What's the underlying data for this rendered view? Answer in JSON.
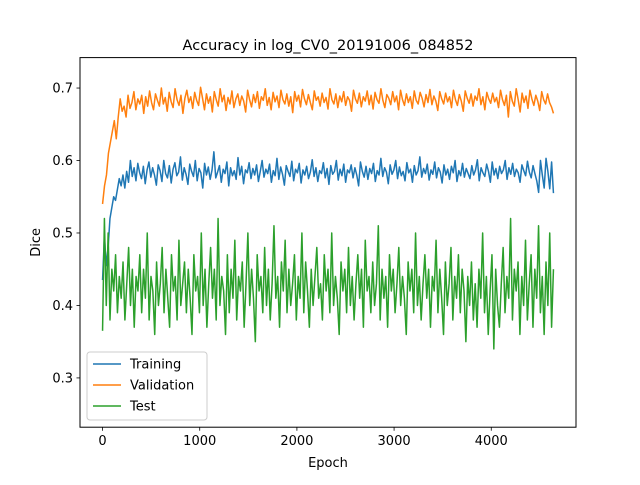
{
  "chart_data": {
    "type": "line",
    "title": "Accuracy in log_CV0_20191006_084852",
    "xlabel": "Epoch",
    "ylabel": "Dice",
    "xlim": [
      -232,
      4872
    ],
    "ylim": [
      0.232,
      0.742
    ],
    "x_ticks": [
      0,
      1000,
      2000,
      3000,
      4000
    ],
    "y_ticks": [
      0.3,
      0.4,
      0.5,
      0.6,
      0.7
    ],
    "x_tick_labels": [
      "0",
      "1000",
      "2000",
      "3000",
      "4000"
    ],
    "y_tick_labels": [
      "0.3",
      "0.4",
      "0.5",
      "0.6",
      "0.7"
    ],
    "grid": false,
    "legend_position": "lower-left",
    "x_range": [
      0,
      4640
    ],
    "sample_step": 20,
    "series": [
      {
        "name": "Training",
        "color": "#1f77b4",
        "values": [
          0.435,
          0.495,
          0.455,
          0.48,
          0.52,
          0.535,
          0.55,
          0.545,
          0.56,
          0.575,
          0.565,
          0.58,
          0.562,
          0.585,
          0.57,
          0.6,
          0.578,
          0.59,
          0.572,
          0.596,
          0.583,
          0.575,
          0.592,
          0.568,
          0.587,
          0.598,
          0.577,
          0.59,
          0.58,
          0.566,
          0.594,
          0.586,
          0.571,
          0.6,
          0.582,
          0.576,
          0.593,
          0.569,
          0.588,
          0.597,
          0.579,
          0.584,
          0.605,
          0.573,
          0.59,
          0.581,
          0.567,
          0.595,
          0.585,
          0.578,
          0.6,
          0.572,
          0.589,
          0.583,
          0.562,
          0.596,
          0.58,
          0.591,
          0.574,
          0.587,
          0.612,
          0.576,
          0.584,
          0.593,
          0.57,
          0.588,
          0.582,
          0.598,
          0.565,
          0.59,
          0.579,
          0.586,
          0.574,
          0.604,
          0.58,
          0.592,
          0.568,
          0.587,
          0.583,
          0.597,
          0.575,
          0.589,
          0.58,
          0.594,
          0.571,
          0.585,
          0.6,
          0.577,
          0.588,
          0.582,
          0.595,
          0.57,
          0.586,
          0.579,
          0.603,
          0.574,
          0.591,
          0.581,
          0.566,
          0.593,
          0.585,
          0.578,
          0.599,
          0.572,
          0.588,
          0.583,
          0.596,
          0.569,
          0.587,
          0.58,
          0.592,
          0.575,
          0.584,
          0.601,
          0.578,
          0.59,
          0.571,
          0.586,
          0.582,
          0.597,
          0.576,
          0.589,
          0.567,
          0.593,
          0.581,
          0.585,
          0.6,
          0.573,
          0.588,
          0.579,
          0.595,
          0.57,
          0.587,
          0.583,
          0.594,
          0.576,
          0.59,
          0.58,
          0.565,
          0.598,
          0.585,
          0.577,
          0.592,
          0.574,
          0.589,
          0.582,
          0.596,
          0.571,
          0.586,
          0.58,
          0.603,
          0.578,
          0.59,
          0.584,
          0.568,
          0.594,
          0.581,
          0.587,
          0.6,
          0.575,
          0.591,
          0.579,
          0.585,
          0.572,
          0.597,
          0.583,
          0.588,
          0.57,
          0.593,
          0.58,
          0.586,
          0.605,
          0.577,
          0.589,
          0.582,
          0.595,
          0.573,
          0.587,
          0.581,
          0.598,
          0.576,
          0.59,
          0.584,
          0.569,
          0.594,
          0.58,
          0.588,
          0.574,
          0.592,
          0.583,
          0.6,
          0.571,
          0.586,
          0.579,
          0.596,
          0.577,
          0.589,
          0.582,
          0.575,
          0.593,
          0.58,
          0.587,
          0.601,
          0.572,
          0.59,
          0.583,
          0.578,
          0.595,
          0.585,
          0.57,
          0.598,
          0.58,
          0.589,
          0.575,
          0.592,
          0.582,
          0.587,
          0.6,
          0.574,
          0.59,
          0.581,
          0.596,
          0.578,
          0.588,
          0.583,
          0.57,
          0.594,
          0.586,
          0.579,
          0.599,
          0.584,
          0.576,
          0.593,
          0.582,
          0.572,
          0.556,
          0.6,
          0.58,
          0.562,
          0.603,
          0.585,
          0.561,
          0.598,
          0.555
        ]
      },
      {
        "name": "Validation",
        "color": "#ff7f0e",
        "values": [
          0.54,
          0.565,
          0.58,
          0.61,
          0.625,
          0.64,
          0.655,
          0.63,
          0.66,
          0.685,
          0.668,
          0.675,
          0.66,
          0.69,
          0.672,
          0.68,
          0.695,
          0.67,
          0.685,
          0.678,
          0.69,
          0.665,
          0.688,
          0.675,
          0.696,
          0.68,
          0.67,
          0.692,
          0.683,
          0.675,
          0.7,
          0.678,
          0.687,
          0.668,
          0.694,
          0.681,
          0.673,
          0.699,
          0.684,
          0.676,
          0.69,
          0.665,
          0.686,
          0.697,
          0.68,
          0.688,
          0.672,
          0.694,
          0.683,
          0.676,
          0.701,
          0.686,
          0.67,
          0.692,
          0.679,
          0.688,
          0.667,
          0.695,
          0.684,
          0.675,
          0.699,
          0.681,
          0.69,
          0.669,
          0.687,
          0.678,
          0.696,
          0.673,
          0.685,
          0.692,
          0.676,
          0.689,
          0.682,
          0.667,
          0.697,
          0.684,
          0.674,
          0.691,
          0.68,
          0.695,
          0.672,
          0.688,
          0.683,
          0.699,
          0.676,
          0.687,
          0.67,
          0.694,
          0.681,
          0.689,
          0.673,
          0.697,
          0.684,
          0.678,
          0.692,
          0.675,
          0.688,
          0.666,
          0.695,
          0.682,
          0.69,
          0.674,
          0.698,
          0.685,
          0.677,
          0.691,
          0.68,
          0.67,
          0.696,
          0.683,
          0.688,
          0.675,
          0.693,
          0.68,
          0.687,
          0.671,
          0.699,
          0.684,
          0.678,
          0.692,
          0.673,
          0.689,
          0.681,
          0.695,
          0.676,
          0.688,
          0.683,
          0.668,
          0.697,
          0.685,
          0.679,
          0.693,
          0.674,
          0.688,
          0.682,
          0.696,
          0.677,
          0.69,
          0.671,
          0.694,
          0.684,
          0.679,
          0.699,
          0.683,
          0.673,
          0.691,
          0.686,
          0.677,
          0.695,
          0.681,
          0.689,
          0.67,
          0.697,
          0.684,
          0.676,
          0.692,
          0.68,
          0.688,
          0.672,
          0.696,
          0.683,
          0.678,
          0.694,
          0.686,
          0.674,
          0.691,
          0.68,
          0.698,
          0.677,
          0.689,
          0.682,
          0.669,
          0.695,
          0.685,
          0.678,
          0.693,
          0.681,
          0.688,
          0.673,
          0.697,
          0.684,
          0.676,
          0.691,
          0.682,
          0.668,
          0.696,
          0.686,
          0.679,
          0.692,
          0.675,
          0.689,
          0.683,
          0.699,
          0.677,
          0.688,
          0.67,
          0.694,
          0.685,
          0.679,
          0.693,
          0.681,
          0.687,
          0.673,
          0.697,
          0.684,
          0.676,
          0.69,
          0.66,
          0.695,
          0.682,
          0.675,
          0.699,
          0.684,
          0.667,
          0.693,
          0.68,
          0.689,
          0.672,
          0.697,
          0.685,
          0.676,
          0.69,
          0.682,
          0.669,
          0.695,
          0.684,
          0.678,
          0.692,
          0.68,
          0.674,
          0.665
        ]
      },
      {
        "name": "Test",
        "color": "#2ca02c",
        "values": [
          0.365,
          0.52,
          0.4,
          0.5,
          0.38,
          0.45,
          0.42,
          0.47,
          0.39,
          0.44,
          0.41,
          0.46,
          0.38,
          0.43,
          0.48,
          0.4,
          0.45,
          0.37,
          0.44,
          0.42,
          0.47,
          0.39,
          0.45,
          0.41,
          0.5,
          0.38,
          0.44,
          0.42,
          0.36,
          0.46,
          0.4,
          0.43,
          0.48,
          0.39,
          0.45,
          0.41,
          0.37,
          0.47,
          0.42,
          0.44,
          0.38,
          0.49,
          0.4,
          0.43,
          0.46,
          0.39,
          0.45,
          0.41,
          0.36,
          0.47,
          0.42,
          0.44,
          0.39,
          0.5,
          0.4,
          0.45,
          0.37,
          0.43,
          0.48,
          0.41,
          0.45,
          0.38,
          0.52,
          0.4,
          0.44,
          0.42,
          0.36,
          0.47,
          0.39,
          0.45,
          0.41,
          0.49,
          0.38,
          0.44,
          0.42,
          0.46,
          0.37,
          0.43,
          0.5,
          0.4,
          0.45,
          0.41,
          0.35,
          0.47,
          0.42,
          0.44,
          0.39,
          0.48,
          0.4,
          0.45,
          0.38,
          0.43,
          0.51,
          0.41,
          0.44,
          0.37,
          0.46,
          0.42,
          0.49,
          0.39,
          0.45,
          0.4,
          0.43,
          0.47,
          0.38,
          0.44,
          0.41,
          0.5,
          0.39,
          0.46,
          0.42,
          0.37,
          0.45,
          0.4,
          0.44,
          0.48,
          0.41,
          0.43,
          0.38,
          0.47,
          0.42,
          0.45,
          0.39,
          0.5,
          0.4,
          0.44,
          0.41,
          0.36,
          0.46,
          0.42,
          0.45,
          0.39,
          0.48,
          0.4,
          0.44,
          0.38,
          0.43,
          0.47,
          0.41,
          0.45,
          0.37,
          0.49,
          0.42,
          0.44,
          0.39,
          0.46,
          0.4,
          0.43,
          0.51,
          0.38,
          0.45,
          0.41,
          0.44,
          0.37,
          0.47,
          0.42,
          0.45,
          0.39,
          0.43,
          0.48,
          0.4,
          0.44,
          0.41,
          0.36,
          0.46,
          0.42,
          0.45,
          0.39,
          0.5,
          0.4,
          0.44,
          0.38,
          0.43,
          0.47,
          0.41,
          0.45,
          0.37,
          0.44,
          0.42,
          0.49,
          0.39,
          0.45,
          0.41,
          0.36,
          0.46,
          0.4,
          0.43,
          0.48,
          0.38,
          0.44,
          0.41,
          0.47,
          0.39,
          0.45,
          0.42,
          0.35,
          0.44,
          0.4,
          0.46,
          0.38,
          0.43,
          0.37,
          0.45,
          0.41,
          0.5,
          0.39,
          0.44,
          0.36,
          0.42,
          0.47,
          0.34,
          0.45,
          0.4,
          0.37,
          0.43,
          0.48,
          0.39,
          0.44,
          0.41,
          0.52,
          0.38,
          0.45,
          0.42,
          0.46,
          0.36,
          0.44,
          0.4,
          0.49,
          0.38,
          0.43,
          0.47,
          0.37,
          0.45,
          0.41,
          0.51,
          0.39,
          0.44,
          0.36,
          0.46,
          0.4,
          0.5,
          0.37,
          0.45
        ]
      }
    ]
  }
}
